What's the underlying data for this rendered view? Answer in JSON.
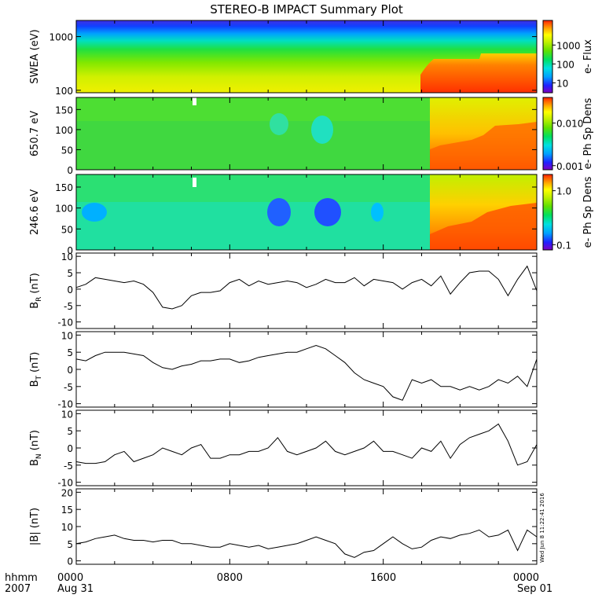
{
  "title": "STEREO-B IMPACT Summary Plot",
  "footer": {
    "hhmm_label": "hhmm",
    "year_label": "2007",
    "time_ticks": [
      "0000",
      "0800",
      "1600",
      "0000"
    ],
    "date_labels": [
      "Aug 31",
      "Sep 01"
    ]
  },
  "side_stamp": "Wed Jun 8 11:22:41 2016",
  "colors": {
    "colormap": [
      "#8000c0",
      "#2020ff",
      "#00a0ff",
      "#00e0e0",
      "#00e060",
      "#60e000",
      "#c0f000",
      "#ffff00",
      "#ffb000",
      "#ff6000",
      "#ff2000"
    ]
  },
  "chart_data": [
    {
      "type": "heatmap",
      "panel": "swea",
      "ylabel": "SWEA (eV)",
      "yscale": "log",
      "ylim": [
        90,
        2000
      ],
      "yticks": [
        100,
        1000
      ],
      "ytick_labels": [
        "100",
        "1000"
      ],
      "colorbar": {
        "label": "e- Flux",
        "scale": "log",
        "range": [
          3,
          20000
        ],
        "ticks": [
          10,
          100,
          1000
        ],
        "tick_labels": [
          "10",
          "100",
          "1000"
        ]
      }
    },
    {
      "type": "heatmap",
      "panel": "pad650",
      "ylabel": "650.7 eV",
      "ylim": [
        0,
        180
      ],
      "yticks": [
        0,
        50,
        100,
        150
      ],
      "ytick_labels": [
        "0",
        "50",
        "100",
        "150"
      ],
      "colorbar": {
        "label": "e- Ph Sp Dens",
        "scale": "log",
        "range": [
          0.0008,
          0.04
        ],
        "ticks": [
          0.001,
          0.01
        ],
        "tick_labels": [
          "0.001",
          "0.010"
        ]
      }
    },
    {
      "type": "heatmap",
      "panel": "pad246",
      "ylabel": "246.6 eV",
      "ylim": [
        0,
        180
      ],
      "yticks": [
        0,
        50,
        100,
        150
      ],
      "ytick_labels": [
        "0",
        "50",
        "100",
        "150"
      ],
      "colorbar": {
        "label": "e- Ph Sp Dens",
        "scale": "log",
        "range": [
          0.08,
          2.0
        ],
        "ticks": [
          0.1,
          1.0
        ],
        "tick_labels": [
          "0.1",
          "1.0"
        ]
      }
    },
    {
      "type": "line",
      "panel": "br",
      "ylabel_main": "B",
      "ylabel_sub": "R",
      "ylabel_unit": "(nT)",
      "ylim": [
        -12,
        11
      ],
      "yticks": [
        -10,
        -5,
        0,
        5,
        10
      ],
      "ytick_labels": [
        "-10",
        "-5",
        "0",
        "5",
        "10"
      ],
      "series": [
        {
          "x": [
            0,
            0.5,
            1,
            1.5,
            2,
            2.5,
            3,
            3.5,
            4,
            4.5,
            5,
            5.5,
            6,
            6.5,
            7,
            7.5,
            8,
            8.5,
            9,
            9.5,
            10,
            10.5,
            11,
            11.5,
            12,
            12.5,
            13,
            13.5,
            14,
            14.5,
            15,
            15.5,
            16,
            16.5,
            17,
            17.5,
            18,
            18.5,
            19,
            19.5,
            20,
            20.5,
            21,
            21.5,
            22,
            22.5,
            23,
            23.5,
            24
          ],
          "y": [
            0.5,
            1.5,
            3.5,
            3,
            2.5,
            2,
            2.5,
            1.5,
            -1,
            -5.5,
            -6,
            -5,
            -2,
            -1,
            -1,
            -0.5,
            2,
            3,
            1,
            2.5,
            1.5,
            2,
            2.5,
            2,
            0.5,
            1.5,
            3,
            2,
            2,
            3.5,
            1,
            3,
            2.5,
            2,
            0,
            2,
            3,
            1,
            4,
            -1.5,
            2,
            5,
            5.5,
            5.5,
            3,
            -2,
            3,
            7,
            -0.5
          ]
        }
      ]
    },
    {
      "type": "line",
      "panel": "bt",
      "ylabel_main": "B",
      "ylabel_sub": "T",
      "ylabel_unit": "(nT)",
      "ylim": [
        -11,
        11
      ],
      "yticks": [
        -10,
        -5,
        0,
        5,
        10
      ],
      "ytick_labels": [
        "-10",
        "-5",
        "0",
        "5",
        "10"
      ],
      "series": [
        {
          "x": [
            0,
            0.5,
            1,
            1.5,
            2,
            2.5,
            3,
            3.5,
            4,
            4.5,
            5,
            5.5,
            6,
            6.5,
            7,
            7.5,
            8,
            8.5,
            9,
            9.5,
            10,
            10.5,
            11,
            11.5,
            12,
            12.5,
            13,
            13.5,
            14,
            14.5,
            15,
            15.5,
            16,
            16.5,
            17,
            17.5,
            18,
            18.5,
            19,
            19.5,
            20,
            20.5,
            21,
            21.5,
            22,
            22.5,
            23,
            23.5,
            24
          ],
          "y": [
            3,
            2.5,
            4,
            5,
            5,
            5,
            4.5,
            4,
            2,
            0.5,
            0,
            1,
            1.5,
            2.5,
            2.5,
            3,
            3,
            2,
            2.5,
            3.5,
            4,
            4.5,
            5,
            5,
            6,
            7,
            6,
            4,
            2,
            -1,
            -3,
            -4,
            -5,
            -8,
            -9,
            -3,
            -4,
            -3,
            -5,
            -5,
            -6,
            -5,
            -6,
            -5,
            -3,
            -4,
            -2,
            -5,
            3
          ]
        }
      ]
    },
    {
      "type": "line",
      "panel": "bn",
      "ylabel_main": "B",
      "ylabel_sub": "N",
      "ylabel_unit": "(nT)",
      "ylim": [
        -11,
        11
      ],
      "yticks": [
        -10,
        -5,
        0,
        5,
        10
      ],
      "ytick_labels": [
        "-10",
        "-5",
        "0",
        "5",
        "10"
      ],
      "series": [
        {
          "x": [
            0,
            0.5,
            1,
            1.5,
            2,
            2.5,
            3,
            3.5,
            4,
            4.5,
            5,
            5.5,
            6,
            6.5,
            7,
            7.5,
            8,
            8.5,
            9,
            9.5,
            10,
            10.5,
            11,
            11.5,
            12,
            12.5,
            13,
            13.5,
            14,
            14.5,
            15,
            15.5,
            16,
            16.5,
            17,
            17.5,
            18,
            18.5,
            19,
            19.5,
            20,
            20.5,
            21,
            21.5,
            22,
            22.5,
            23,
            23.5,
            24
          ],
          "y": [
            -4,
            -4.5,
            -4.5,
            -4,
            -2,
            -1,
            -4,
            -3,
            -2,
            0,
            -1,
            -2,
            0,
            1,
            -3,
            -3,
            -2,
            -2,
            -1,
            -1,
            0,
            3,
            -1,
            -2,
            -1,
            0,
            2,
            -1,
            -2,
            -1,
            0,
            2,
            -1,
            -1,
            -2,
            -3,
            0,
            -1,
            2,
            -3,
            1,
            3,
            4,
            5,
            7,
            2,
            -5,
            -4,
            1
          ]
        }
      ]
    },
    {
      "type": "line",
      "panel": "bmag",
      "ylabel_main": "|B| (nT)",
      "ylim": [
        -1,
        21
      ],
      "yticks": [
        0,
        5,
        10,
        15,
        20
      ],
      "ytick_labels": [
        "0",
        "5",
        "10",
        "15",
        "20"
      ],
      "series": [
        {
          "x": [
            0,
            0.5,
            1,
            1.5,
            2,
            2.5,
            3,
            3.5,
            4,
            4.5,
            5,
            5.5,
            6,
            6.5,
            7,
            7.5,
            8,
            8.5,
            9,
            9.5,
            10,
            10.5,
            11,
            11.5,
            12,
            12.5,
            13,
            13.5,
            14,
            14.5,
            15,
            15.5,
            16,
            16.5,
            17,
            17.5,
            18,
            18.5,
            19,
            19.5,
            20,
            20.5,
            21,
            21.5,
            22,
            22.5,
            23,
            23.5,
            24
          ],
          "y": [
            5,
            5.5,
            6.5,
            7,
            7.5,
            6.5,
            6,
            6,
            5.5,
            6,
            6,
            5,
            5,
            4.5,
            4,
            4,
            5,
            4.5,
            4,
            4.5,
            3.5,
            4,
            4.5,
            5,
            6,
            7,
            6,
            5,
            2,
            1,
            2.5,
            3,
            5,
            7,
            5,
            3.5,
            4,
            6,
            7,
            6.5,
            7.5,
            8,
            9,
            7,
            7.5,
            9,
            3,
            9,
            7
          ]
        }
      ]
    }
  ]
}
